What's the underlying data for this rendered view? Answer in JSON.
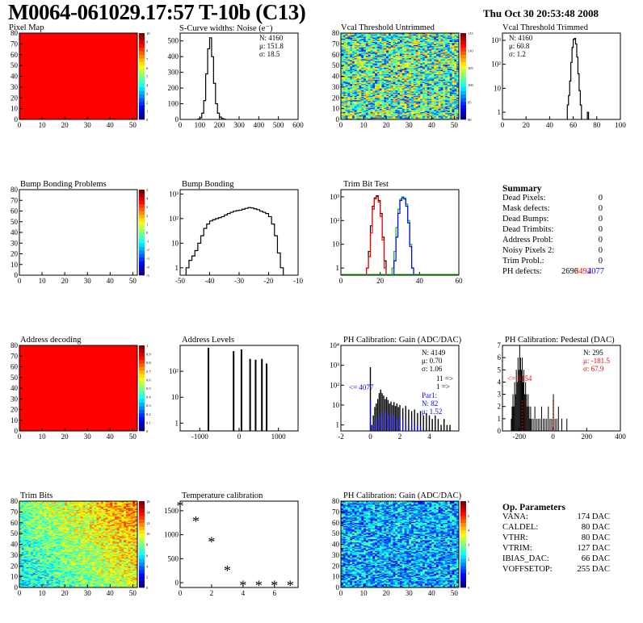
{
  "header": {
    "title": "M0064-061029.17:57 T-10b (C13)",
    "date": "Thu Oct 30 20:53:48 2008"
  },
  "panels": {
    "pixel_map": {
      "title": "Pixel Map"
    },
    "scurve": {
      "title": "S-Curve widths: Noise (e⁻)",
      "stats": [
        "N: 4160",
        "μ: 151.8",
        "σ: 18.5"
      ]
    },
    "vcal_untrimmed": {
      "title": "Vcal Threshold Untrimmed"
    },
    "vcal_trimmed": {
      "title": "Vcal Threshold Trimmed",
      "stats": [
        "N: 4160",
        "μ: 60.8",
        "σ:  1.2"
      ]
    },
    "bump_problems": {
      "title": "Bump Bonding Problems"
    },
    "bump_bonding": {
      "title": "Bump Bonding"
    },
    "trim_bit_test": {
      "title": "Trim Bit Test"
    },
    "address_decoding": {
      "title": "Address decoding"
    },
    "address_levels": {
      "title": "Address Levels"
    },
    "ph_gain": {
      "title": "PH Calibration: Gain (ADC/DAC)",
      "stats": [
        "N: 4149",
        "μ: 0.70",
        "σ: 1.06"
      ],
      "overflow": [
        "11 =>",
        "1 =>"
      ],
      "left_note": "<= 4077",
      "par_text": [
        "Par1:",
        "N:  82",
        "μ: 1.52"
      ]
    },
    "ph_pedestal": {
      "title": "PH Calibration: Pedestal (DAC)",
      "stats": [
        "N:  295",
        "μ: -181.5",
        "σ: 67.9"
      ],
      "left_note": "<= 3154"
    },
    "trim_bits": {
      "title": "Trim Bits"
    },
    "temp_cal": {
      "title": "Temperature calibration"
    },
    "ph_gain_map": {
      "title": "PH Calibration: Gain (ADC/DAC)"
    }
  },
  "summary": {
    "title": "Summary",
    "rows": [
      {
        "label": "Dead Pixels:",
        "value": "0"
      },
      {
        "label": "Mask defects:",
        "value": "0"
      },
      {
        "label": "Dead Bumps:",
        "value": "0"
      },
      {
        "label": "Dead Trimbits:",
        "value": "0"
      },
      {
        "label": "Address Probl:",
        "value": "0"
      },
      {
        "label": "Noisy Pixels 2:",
        "value": "0"
      },
      {
        "label": "Trim Probl.:",
        "value": "0"
      }
    ],
    "ph_defects_label": "PH defects:",
    "ph_defects_values": [
      "2696",
      "3492",
      "4077"
    ]
  },
  "op_params": {
    "title": "Op. Parameters",
    "rows": [
      {
        "label": "VANA:",
        "value": "174 DAC"
      },
      {
        "label": "CALDEL:",
        "value": "80 DAC"
      },
      {
        "label": "VTHR:",
        "value": "80 DAC"
      },
      {
        "label": "VTRIM:",
        "value": "127 DAC"
      },
      {
        "label": "IBIAS_DAC:",
        "value": "66 DAC"
      },
      {
        "label": "VOFFSETOP:",
        "value": "255 DAC"
      }
    ]
  },
  "colors": {
    "map_red": "#ff0000",
    "trim_green": "#00c000",
    "trim_red": "#ff0000",
    "gain_blue": "#0000ff",
    "note_blue": "#0000ff",
    "ped_red": "#ff0000"
  },
  "chart_data": [
    {
      "id": "pixel_map",
      "type": "heatmap",
      "xlim": [
        0,
        52
      ],
      "ylim": [
        0,
        80
      ],
      "xticks": [
        "0",
        "10",
        "20",
        "30",
        "40",
        "50"
      ],
      "yticks": [
        "0",
        "10",
        "20",
        "30",
        "40",
        "50",
        "60",
        "70",
        "80"
      ],
      "zticks": [
        "0",
        "1",
        "2",
        "3",
        "4",
        "5",
        "6",
        "7",
        "8",
        "9",
        "10"
      ],
      "fill": "uniform-max"
    },
    {
      "id": "scurve",
      "type": "bar",
      "xlim": [
        0,
        600
      ],
      "ylim": [
        0,
        550
      ],
      "xticks": [
        "0",
        "100",
        "200",
        "300",
        "400",
        "500",
        "600"
      ],
      "yticks": [
        "0",
        "100",
        "200",
        "300",
        "400",
        "500"
      ],
      "bin_width": 10,
      "x": [
        90,
        100,
        110,
        120,
        130,
        140,
        150,
        160,
        170,
        180,
        190,
        200,
        210,
        220
      ],
      "values": [
        3,
        10,
        40,
        120,
        290,
        450,
        520,
        400,
        230,
        100,
        40,
        15,
        6,
        2
      ]
    },
    {
      "id": "vcal_untrimmed",
      "type": "heatmap",
      "xlim": [
        0,
        52
      ],
      "ylim": [
        0,
        80
      ],
      "xticks": [
        "0",
        "10",
        "20",
        "30",
        "40",
        "50"
      ],
      "yticks": [
        "0",
        "10",
        "20",
        "30",
        "40",
        "50",
        "60",
        "70",
        "80"
      ],
      "zticks": [
        "90",
        "95",
        "100",
        "105",
        "110",
        "115"
      ],
      "fill": "noise-mid"
    },
    {
      "id": "vcal_trimmed",
      "type": "bar",
      "log_y": true,
      "xlim": [
        0,
        100
      ],
      "ylim": [
        0.5,
        2000
      ],
      "xticks": [
        "0",
        "20",
        "40",
        "60",
        "80",
        "100"
      ],
      "yticks": [
        "1",
        "10",
        "10²",
        "10³"
      ],
      "bin_width": 1,
      "x": [
        55,
        56,
        57,
        58,
        59,
        60,
        61,
        62,
        63,
        64,
        65,
        66,
        72
      ],
      "values": [
        2,
        5,
        20,
        120,
        500,
        1100,
        1200,
        700,
        200,
        40,
        8,
        2,
        1
      ]
    },
    {
      "id": "bump_problems",
      "type": "heatmap",
      "xlim": [
        0,
        52
      ],
      "ylim": [
        0,
        80
      ],
      "xticks": [
        "0",
        "10",
        "20",
        "30",
        "40",
        "50"
      ],
      "yticks": [
        "0",
        "10",
        "20",
        "30",
        "40",
        "50",
        "60",
        "70",
        "80"
      ],
      "zticks": [
        "-5",
        "-4",
        "-3",
        "-2",
        "-1",
        "0",
        "1",
        "2",
        "3",
        "4",
        "5"
      ],
      "fill": "empty"
    },
    {
      "id": "bump_bonding",
      "type": "bar",
      "log_y": true,
      "xlim": [
        -50,
        -10
      ],
      "ylim": [
        0.5,
        1500
      ],
      "xticks": [
        "-50",
        "-40",
        "-30",
        "-20",
        "-10"
      ],
      "yticks": [
        "1",
        "10",
        "10²",
        "10³"
      ],
      "bin_width": 1,
      "x": [
        -48,
        -47,
        -46,
        -45,
        -44,
        -43,
        -42,
        -41,
        -40,
        -39,
        -38,
        -37,
        -36,
        -35,
        -34,
        -33,
        -32,
        -31,
        -30,
        -29,
        -28,
        -27,
        -26,
        -25,
        -24,
        -23,
        -22,
        -21,
        -20,
        -19,
        -18,
        -17,
        -16
      ],
      "values": [
        1,
        2,
        3,
        5,
        10,
        20,
        40,
        60,
        80,
        90,
        100,
        110,
        120,
        140,
        160,
        180,
        200,
        210,
        220,
        240,
        260,
        280,
        270,
        250,
        230,
        200,
        180,
        160,
        120,
        60,
        20,
        4,
        1
      ]
    },
    {
      "id": "trim_bit_test",
      "type": "line",
      "log_y": true,
      "xlim": [
        0,
        60
      ],
      "ylim": [
        0.5,
        2000
      ],
      "xticks": [
        "0",
        "20",
        "40",
        "60"
      ],
      "yticks": [
        "1",
        "10",
        "10²",
        "10³"
      ],
      "bin_width": 1,
      "series": [
        {
          "color": "#000000",
          "x": [
            13,
            14,
            15,
            16,
            17,
            18,
            19,
            20,
            21,
            22
          ],
          "values": [
            1,
            5,
            60,
            400,
            900,
            1100,
            700,
            200,
            20,
            2
          ]
        },
        {
          "color": "#ff0000",
          "x": [
            13,
            14,
            15,
            16,
            17,
            18,
            19,
            20,
            21,
            22
          ],
          "values": [
            1,
            3,
            30,
            300,
            800,
            1000,
            600,
            150,
            15,
            1
          ]
        },
        {
          "color": "#00c000",
          "x": [
            26,
            27,
            28,
            29,
            30,
            31,
            32,
            33,
            34,
            35,
            36
          ],
          "values": [
            1,
            5,
            50,
            300,
            800,
            1000,
            900,
            500,
            100,
            10,
            1
          ]
        },
        {
          "color": "#0000ff",
          "x": [
            27,
            28,
            29,
            30,
            31,
            32,
            33,
            34,
            35,
            36
          ],
          "values": [
            2,
            20,
            200,
            700,
            900,
            800,
            400,
            80,
            8,
            1
          ]
        }
      ]
    },
    {
      "id": "address_decoding",
      "type": "heatmap",
      "xlim": [
        0,
        52
      ],
      "ylim": [
        0,
        80
      ],
      "xticks": [
        "0",
        "10",
        "20",
        "30",
        "40",
        "50"
      ],
      "yticks": [
        "0",
        "10",
        "20",
        "30",
        "40",
        "50",
        "60",
        "70",
        "80"
      ],
      "zticks": [
        "0",
        "0.1",
        "0.2",
        "0.3",
        "0.4",
        "0.5",
        "0.6",
        "0.7",
        "0.8",
        "0.9",
        "1"
      ],
      "fill": "uniform-max"
    },
    {
      "id": "address_levels",
      "type": "bar",
      "log_y": true,
      "xlim": [
        -1500,
        1500
      ],
      "ylim": [
        0.5,
        1000
      ],
      "xticks": [
        "-1000",
        "0",
        "1000"
      ],
      "yticks": [
        "1",
        "10",
        "10²"
      ],
      "x": [
        -780,
        -140,
        60,
        280,
        420,
        580,
        700
      ],
      "values": [
        800,
        600,
        700,
        300,
        280,
        300,
        200
      ]
    },
    {
      "id": "ph_gain",
      "type": "bar",
      "log_y": true,
      "xlim": [
        -2,
        6
      ],
      "ylim": [
        0.5,
        10000
      ],
      "xticks": [
        "-2",
        "0",
        "2",
        "4"
      ],
      "yticks": [
        "1",
        "10",
        "10²",
        "10³",
        "10⁴"
      ],
      "series": [
        {
          "name": "black",
          "x": [
            0.0,
            0.1,
            0.2,
            0.3,
            0.4,
            0.5,
            0.6,
            0.7,
            0.8,
            0.9,
            1.0,
            1.1,
            1.2,
            1.3,
            1.4,
            1.5,
            1.6,
            1.7,
            1.8,
            1.9,
            2.0,
            2.2,
            2.4,
            2.6,
            2.8,
            3.0,
            3.2,
            3.4,
            3.6,
            3.8,
            4.0,
            4.2,
            4.4,
            4.6,
            4.8,
            5.0,
            5.2,
            5.4
          ],
          "values": [
            800,
            1,
            3,
            8,
            12,
            20,
            40,
            60,
            40,
            30,
            20,
            25,
            18,
            12,
            15,
            10,
            14,
            9,
            12,
            8,
            10,
            7,
            9,
            6,
            5,
            6,
            4,
            5,
            3,
            4,
            3,
            2,
            3,
            2,
            1,
            2,
            1,
            1
          ]
        },
        {
          "name": "blue",
          "x": [
            0.0,
            0.2,
            0.4,
            0.6,
            0.8,
            1.0,
            1.2,
            1.4,
            1.6,
            1.8,
            2.0,
            2.2,
            2.4,
            2.6,
            2.8,
            3.0,
            3.2,
            3.4
          ],
          "values": [
            20,
            1,
            2,
            3,
            4,
            5,
            3,
            4,
            3,
            2,
            3,
            2,
            2,
            1,
            2,
            1,
            1,
            1
          ]
        }
      ]
    },
    {
      "id": "ph_pedestal",
      "type": "bar",
      "xlim": [
        -300,
        400
      ],
      "ylim": [
        0,
        7
      ],
      "xticks": [
        "-200",
        "0",
        "200",
        "400"
      ],
      "yticks": [
        "0",
        "1",
        "2",
        "3",
        "4",
        "5",
        "6",
        "7"
      ],
      "bin_width": 5,
      "x": [
        -250,
        -245,
        -240,
        -235,
        -230,
        -225,
        -220,
        -215,
        -210,
        -205,
        -200,
        -195,
        -190,
        -185,
        -180,
        -175,
        -170,
        -165,
        -160,
        -155,
        -150,
        -145,
        -140,
        -135,
        -130,
        -120,
        -110,
        -100,
        -90,
        -80,
        -70,
        -60,
        -50,
        -40,
        -30,
        -20,
        -10,
        0,
        10,
        20,
        30,
        50,
        80
      ],
      "values": [
        1,
        2,
        3,
        2,
        4,
        3,
        5,
        4,
        6,
        5,
        7,
        6,
        5,
        6,
        4,
        5,
        3,
        4,
        3,
        2,
        3,
        2,
        1,
        2,
        1,
        1,
        2,
        1,
        1,
        1,
        2,
        1,
        1,
        1,
        2,
        1,
        1,
        3,
        1,
        1,
        2,
        1,
        1
      ]
    },
    {
      "id": "trim_bits",
      "type": "heatmap",
      "xlim": [
        0,
        52
      ],
      "ylim": [
        0,
        80
      ],
      "xticks": [
        "0",
        "10",
        "20",
        "30",
        "40",
        "50"
      ],
      "yticks": [
        "0",
        "10",
        "20",
        "30",
        "40",
        "50",
        "60",
        "70",
        "80"
      ],
      "zticks": [
        "0",
        "2",
        "4",
        "6",
        "8",
        "10",
        "12",
        "14",
        "16"
      ],
      "fill": "gradient"
    },
    {
      "id": "temp_cal",
      "type": "scatter",
      "xlim": [
        0,
        7.5
      ],
      "ylim": [
        -100,
        1700
      ],
      "xticks": [
        "0",
        "2",
        "4",
        "6"
      ],
      "yticks": [
        "0",
        "500",
        "1000",
        "1500"
      ],
      "x": [
        0,
        1,
        2,
        3,
        4,
        5,
        6,
        7
      ],
      "values": [
        1600,
        1280,
        850,
        250,
        -60,
        -60,
        -60,
        -60
      ]
    },
    {
      "id": "ph_gain_map",
      "type": "heatmap",
      "xlim": [
        0,
        52
      ],
      "ylim": [
        0,
        80
      ],
      "xticks": [
        "0",
        "10",
        "20",
        "30",
        "40",
        "50"
      ],
      "yticks": [
        "0",
        "10",
        "20",
        "30",
        "40",
        "50",
        "60",
        "70",
        "80"
      ],
      "zticks": [
        "0",
        "1",
        "2",
        "3",
        "4",
        "5",
        "6"
      ],
      "fill": "noise-low"
    }
  ]
}
